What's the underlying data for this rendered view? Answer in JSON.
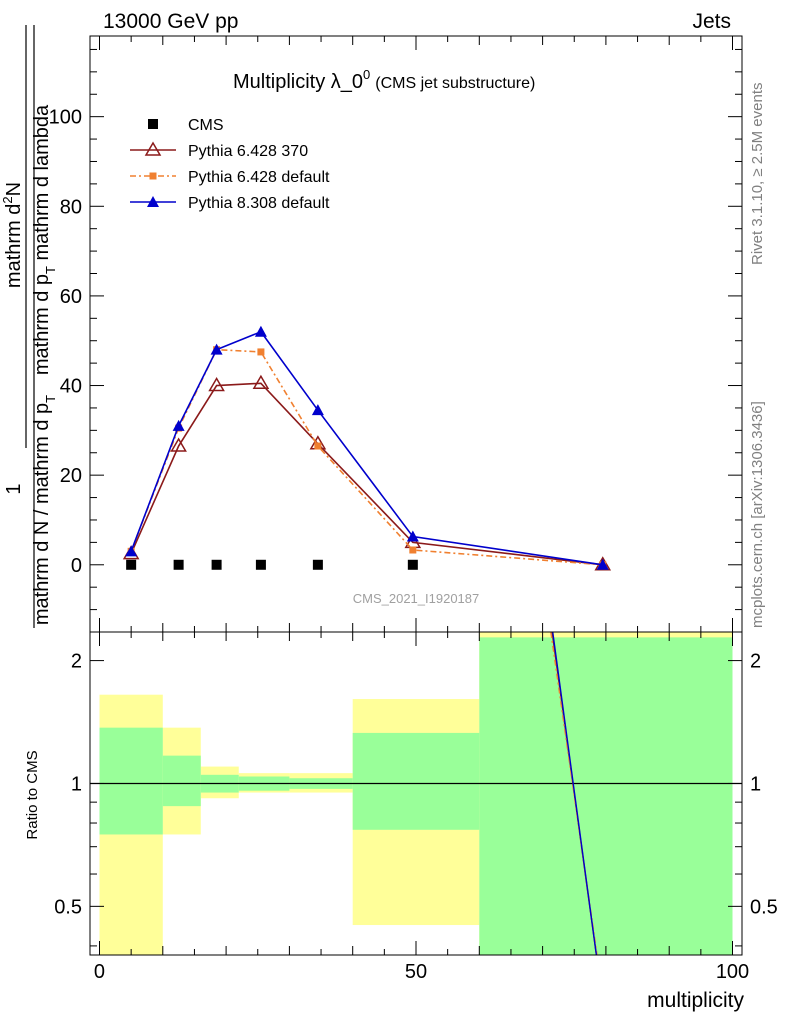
{
  "header": {
    "left": "13000 GeV pp",
    "right": "Jets"
  },
  "side_labels": {
    "top": "Rivet 3.1.10, ≥ 2.5M events",
    "bottom": "mcplots.cern.ch [arXiv:1306.3436]"
  },
  "watermark": "CMS_2021_I1920187",
  "chart_data": [
    {
      "type": "line",
      "title": "Multiplicity λ_0",
      "title_sup": "0",
      "subtitle": "(CMS jet substructure)",
      "ylabel_prefix": "1",
      "ylabel_num": "mathrm d",
      "ylabel_num_sup": "2",
      "ylabel_num_end": "N",
      "ylabel_denom": "mathrm d p",
      "ylabel_denom_sub": "T",
      "ylabel_denom_end": " mathrm d lambda",
      "ylabel_outer_a": "mathrm d N / mathrm d p",
      "ylabel_outer_sub": "T",
      "xlim": [
        -1.5,
        101.5
      ],
      "ylim": [
        -15,
        118
      ],
      "yticks": [
        0,
        20,
        40,
        60,
        80,
        100
      ],
      "ytick_labels": [
        "0",
        "20",
        "40",
        "60",
        "80",
        "100"
      ],
      "legend_placement": "top-left",
      "series": [
        {
          "name": "CMS",
          "color": "#000000",
          "marker": "square",
          "x": [
            5,
            12.5,
            18.5,
            25.5,
            34.5,
            49.5
          ],
          "y": [
            0,
            0,
            0,
            0,
            0,
            0
          ]
        },
        {
          "name": "Pythia 6.428 370",
          "color": "#8b1a1a",
          "marker": "open-triangle",
          "dash": "",
          "x": [
            5,
            12.5,
            18.5,
            25.5,
            34.5,
            49.5,
            79.5
          ],
          "y": [
            2.5,
            26.5,
            40,
            40.5,
            27,
            5,
            0
          ]
        },
        {
          "name": "Pythia 6.428 default",
          "color": "#f08030",
          "marker": "small-square",
          "dash": "6,3,2,3",
          "x": [
            5,
            12.5,
            18.5,
            25.5,
            34.5,
            49.5,
            79.5
          ],
          "y": [
            3,
            30.5,
            48,
            47.5,
            26.5,
            3.3,
            0
          ]
        },
        {
          "name": "Pythia 8.308 default",
          "color": "#0000cc",
          "marker": "filled-triangle",
          "dash": "",
          "x": [
            5,
            12.5,
            18.5,
            25.5,
            34.5,
            49.5,
            79.5
          ],
          "y": [
            3,
            31,
            48,
            52,
            34.5,
            6.3,
            0
          ]
        }
      ]
    },
    {
      "type": "area",
      "ylabel": "Ratio to CMS",
      "xlabel": "multiplicity",
      "scale": "log",
      "xlim": [
        -1.5,
        101.5
      ],
      "ylim": [
        0.38,
        2.35
      ],
      "xticks": [
        0,
        50,
        100
      ],
      "xtick_labels": [
        "0",
        "50",
        "100"
      ],
      "yticks": [
        0.5,
        1,
        2
      ],
      "ytick_labels": [
        "0.5",
        "1",
        "2"
      ],
      "colors": {
        "outer_band": "#ffff99",
        "inner_band": "#99ff99",
        "reference": "#000000"
      },
      "bands": [
        {
          "x0": 0,
          "x1": 10,
          "outer": [
            0.37,
            1.65
          ],
          "inner": [
            0.75,
            1.37
          ]
        },
        {
          "x0": 10,
          "x1": 16,
          "outer": [
            0.75,
            1.37
          ],
          "inner": [
            0.88,
            1.17
          ]
        },
        {
          "x0": 16,
          "x1": 22,
          "outer": [
            0.92,
            1.1
          ],
          "inner": [
            0.95,
            1.05
          ]
        },
        {
          "x0": 22,
          "x1": 30,
          "outer": [
            0.95,
            1.06
          ],
          "inner": [
            0.96,
            1.04
          ]
        },
        {
          "x0": 30,
          "x1": 40,
          "outer": [
            0.95,
            1.06
          ],
          "inner": [
            0.97,
            1.03
          ]
        },
        {
          "x0": 40,
          "x1": 60,
          "outer": [
            0.45,
            1.61
          ],
          "inner": [
            0.77,
            1.33
          ]
        },
        {
          "x0": 60,
          "x1": 100,
          "outer": [
            0.37,
            2.45
          ],
          "inner": [
            0.37,
            2.28
          ]
        }
      ],
      "series": [
        {
          "name": "Pythia 6.428 370",
          "color": "#8b1a1a",
          "x": [
            71.5,
            78.5
          ],
          "y": [
            2.45,
            0.37
          ]
        },
        {
          "name": "Pythia 6.428 default",
          "color": "#f08030",
          "x": [
            71.3,
            78.6
          ],
          "y": [
            2.45,
            0.37
          ]
        },
        {
          "name": "Pythia 8.308 default",
          "color": "#0000cc",
          "x": [
            71.6,
            78.5
          ],
          "y": [
            2.45,
            0.37
          ]
        }
      ]
    }
  ]
}
